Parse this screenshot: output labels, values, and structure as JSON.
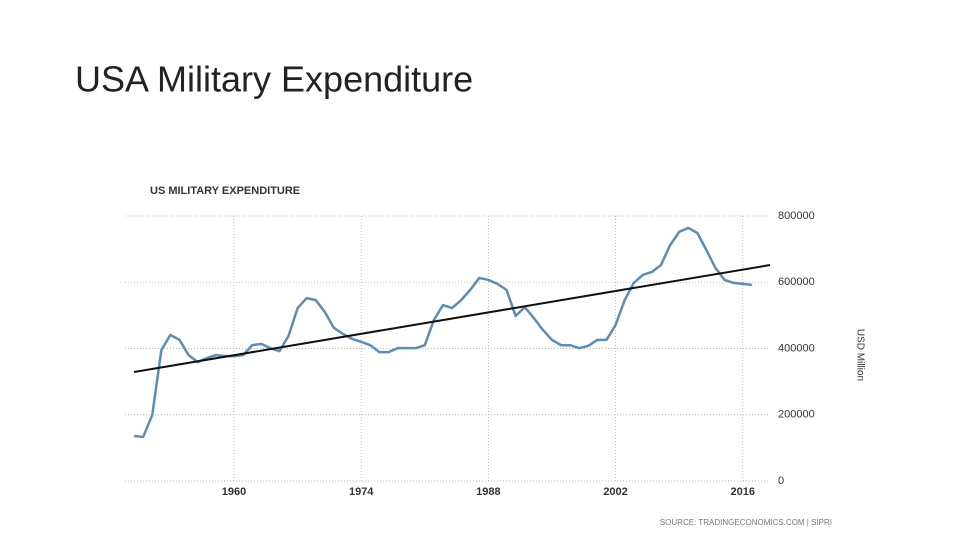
{
  "slide_title": "USA Military Expenditure",
  "chart_data": {
    "type": "line",
    "title": "US  MILITARY EXPENDITURE",
    "y_axis_label": "USD Million",
    "source": "SOURCE: TRADINGECONOMICS.COM | SIPRI",
    "x": [
      1949,
      1950,
      1951,
      1952,
      1953,
      1954,
      1955,
      1956,
      1957,
      1958,
      1959,
      1960,
      1961,
      1962,
      1963,
      1964,
      1965,
      1966,
      1967,
      1968,
      1969,
      1970,
      1971,
      1972,
      1973,
      1974,
      1975,
      1976,
      1977,
      1978,
      1979,
      1980,
      1981,
      1982,
      1983,
      1984,
      1985,
      1986,
      1987,
      1988,
      1989,
      1990,
      1991,
      1992,
      1993,
      1994,
      1995,
      1996,
      1997,
      1998,
      1999,
      2000,
      2001,
      2002,
      2003,
      2004,
      2005,
      2006,
      2007,
      2008,
      2009,
      2010,
      2011,
      2012,
      2013,
      2014,
      2015,
      2016,
      2017
    ],
    "series": [
      {
        "color": "#5b8db8",
        "values": [
          136000,
          133000,
          199000,
          395000,
          441000,
          426000,
          380000,
          359000,
          371000,
          380000,
          377000,
          377000,
          380000,
          410000,
          414000,
          401000,
          392000,
          438000,
          522000,
          552000,
          546000,
          510000,
          462000,
          444000,
          429000,
          420000,
          410000,
          389000,
          389000,
          401000,
          401000,
          401000,
          410000,
          486000,
          531000,
          522000,
          546000,
          577000,
          613000,
          607000,
          595000,
          577000,
          498000,
          525000,
          492000,
          456000,
          426000,
          410000,
          410000,
          401000,
          408000,
          426000,
          426000,
          471000,
          546000,
          598000,
          622000,
          631000,
          652000,
          712000,
          752000,
          764000,
          749000,
          697000,
          643000,
          607000,
          598000,
          595000,
          592000
        ]
      }
    ],
    "trend": {
      "color": "#111111",
      "x": [
        1949,
        2019
      ],
      "values": [
        329000,
        652000
      ]
    },
    "xlim": [
      1948,
      2019
    ],
    "xticks": [
      1960,
      1974,
      1988,
      2002,
      2016
    ],
    "ylim": [
      0,
      800000
    ],
    "yticks": [
      0,
      200000,
      400000,
      600000,
      800000
    ],
    "grid": true
  }
}
